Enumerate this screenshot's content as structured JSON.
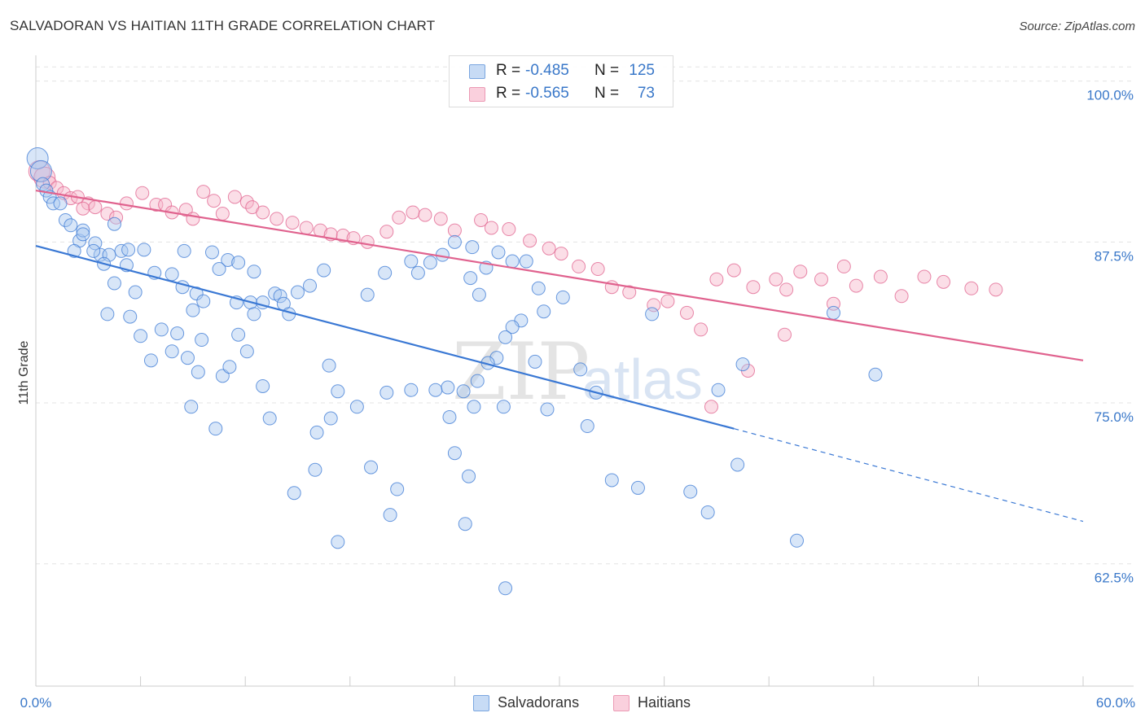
{
  "title": "SALVADORAN VS HAITIAN 11TH GRADE CORRELATION CHART",
  "source": "Source: ZipAtlas.com",
  "watermark": {
    "zip": "ZIP",
    "atlas": "atlas"
  },
  "legend_top": [
    {
      "r_label": "R =",
      "r_value": "-0.485",
      "n_label": "N =",
      "n_value": "125",
      "color": "#a9c8ef"
    },
    {
      "r_label": "R =",
      "r_value": "-0.565",
      "n_label": "N =",
      "n_value": "73",
      "color": "#f6b6ca"
    }
  ],
  "legend_bottom": [
    {
      "label": "Salvadorans",
      "color": "#a9c8ef"
    },
    {
      "label": "Haitians",
      "color": "#f6b6ca"
    }
  ],
  "chart_data": {
    "type": "scatter",
    "title": "SALVADORAN VS HAITIAN 11TH GRADE CORRELATION CHART",
    "xlabel": "",
    "ylabel": "11th Grade",
    "xlim": [
      0,
      60
    ],
    "ylim": [
      53,
      102
    ],
    "x_tick_labels": [
      "0.0%",
      "60.0%"
    ],
    "y_ticks": [
      62.5,
      75.0,
      87.5,
      100.0
    ],
    "y_tick_labels": [
      "62.5%",
      "75.0%",
      "87.5%",
      "100.0%"
    ],
    "grid": true,
    "legend": "bottom-center",
    "series": [
      {
        "name": "Salvadorans",
        "color": "#3a78d4",
        "fill": "#a9c8ef",
        "trend": {
          "x0": 0,
          "y0": 87.2,
          "x1": 40,
          "y1": 73.0,
          "dash_x1": 60,
          "dash_y1": 65.8
        },
        "points": [
          [
            0.1,
            94
          ],
          [
            0.3,
            93
          ],
          [
            0.4,
            92
          ],
          [
            0.6,
            91.5
          ],
          [
            0.8,
            91
          ],
          [
            1.0,
            90.5
          ],
          [
            1.4,
            90.5
          ],
          [
            1.7,
            89.2
          ],
          [
            2.0,
            88.8
          ],
          [
            2.5,
            87.6
          ],
          [
            2.7,
            88.4
          ],
          [
            2.2,
            86.8
          ],
          [
            3.4,
            87.4
          ],
          [
            3.7,
            86.5
          ],
          [
            3.3,
            86.8
          ],
          [
            4.2,
            86.5
          ],
          [
            4.9,
            86.8
          ],
          [
            5.3,
            86.9
          ],
          [
            6.2,
            86.9
          ],
          [
            5.2,
            85.7
          ],
          [
            6.8,
            85.1
          ],
          [
            8.5,
            86.8
          ],
          [
            10.1,
            86.7
          ],
          [
            11.0,
            86.1
          ],
          [
            10.5,
            85.4
          ],
          [
            11.6,
            85.9
          ],
          [
            12.5,
            85.2
          ],
          [
            2.7,
            88.1
          ],
          [
            4.5,
            88.9
          ],
          [
            3.9,
            85.8
          ],
          [
            4.5,
            84.3
          ],
          [
            5.7,
            83.6
          ],
          [
            7.8,
            85
          ],
          [
            8.4,
            84
          ],
          [
            9.2,
            83.5
          ],
          [
            9.6,
            82.9
          ],
          [
            11.5,
            82.8
          ],
          [
            13.7,
            83.5
          ],
          [
            12.3,
            82.8
          ],
          [
            14.0,
            83.3
          ],
          [
            15.0,
            83.6
          ],
          [
            14.2,
            82.7
          ],
          [
            16.5,
            85.3
          ],
          [
            19.0,
            83.4
          ],
          [
            20.0,
            85.1
          ],
          [
            21.5,
            86
          ],
          [
            21.9,
            85.1
          ],
          [
            23.3,
            86.5
          ],
          [
            24.0,
            87.5
          ],
          [
            25.0,
            87.1
          ],
          [
            22.6,
            85.9
          ],
          [
            24.9,
            84.7
          ],
          [
            25.4,
            83.4
          ],
          [
            25.8,
            85.5
          ],
          [
            26.5,
            86.7
          ],
          [
            27.3,
            86.0
          ],
          [
            28.1,
            86.0
          ],
          [
            28.8,
            83.9
          ],
          [
            30.2,
            83.2
          ],
          [
            29.1,
            82.1
          ],
          [
            27.8,
            81.4
          ],
          [
            27.3,
            80.9
          ],
          [
            26.9,
            80.1
          ],
          [
            26.4,
            78.5
          ],
          [
            25.9,
            78.1
          ],
          [
            25.3,
            76.7
          ],
          [
            23.6,
            76.2
          ],
          [
            24.5,
            75.9
          ],
          [
            25.1,
            74.7
          ],
          [
            23.7,
            73.9
          ],
          [
            22.9,
            76.0
          ],
          [
            21.5,
            76.0
          ],
          [
            20.1,
            75.8
          ],
          [
            18.4,
            74.7
          ],
          [
            17.3,
            75.9
          ],
          [
            16.8,
            77.9
          ],
          [
            14.5,
            81.9
          ],
          [
            13.0,
            82.8
          ],
          [
            12.5,
            81.9
          ],
          [
            15.7,
            84.1
          ],
          [
            11.6,
            80.3
          ],
          [
            12.1,
            79.0
          ],
          [
            10.7,
            77.1
          ],
          [
            9.5,
            79.9
          ],
          [
            9.0,
            82.2
          ],
          [
            8.1,
            80.4
          ],
          [
            7.8,
            79.0
          ],
          [
            6.6,
            78.3
          ],
          [
            5.4,
            81.7
          ],
          [
            4.1,
            81.9
          ],
          [
            6.0,
            80.2
          ],
          [
            7.2,
            80.7
          ],
          [
            8.7,
            78.5
          ],
          [
            9.3,
            77.4
          ],
          [
            8.9,
            74.7
          ],
          [
            10.3,
            73.0
          ],
          [
            11.1,
            77.8
          ],
          [
            13.4,
            73.8
          ],
          [
            13.0,
            76.3
          ],
          [
            16.0,
            69.8
          ],
          [
            14.8,
            68.0
          ],
          [
            16.9,
            73.8
          ],
          [
            16.1,
            72.7
          ],
          [
            17.3,
            64.2
          ],
          [
            19.2,
            70.0
          ],
          [
            20.3,
            66.3
          ],
          [
            20.7,
            68.3
          ],
          [
            24.0,
            71.1
          ],
          [
            24.8,
            69.3
          ],
          [
            24.6,
            65.6
          ],
          [
            26.9,
            60.6
          ],
          [
            26.8,
            74.7
          ],
          [
            28.6,
            78.2
          ],
          [
            29.3,
            74.5
          ],
          [
            31.2,
            77.6
          ],
          [
            31.6,
            73.2
          ],
          [
            32.1,
            75.8
          ],
          [
            33.0,
            69.0
          ],
          [
            34.5,
            68.4
          ],
          [
            35.3,
            81.9
          ],
          [
            37.5,
            68.1
          ],
          [
            38.5,
            66.5
          ],
          [
            39.1,
            76.0
          ],
          [
            40.2,
            70.2
          ],
          [
            40.5,
            78.0
          ],
          [
            43.6,
            64.3
          ],
          [
            45.7,
            82.0
          ],
          [
            48.1,
            77.2
          ]
        ]
      },
      {
        "name": "Haitians",
        "color": "#e0628e",
        "fill": "#f6b6ca",
        "trend": {
          "x0": 0,
          "y0": 91.5,
          "x1": 60,
          "y1": 78.3
        },
        "points": [
          [
            0.2,
            93.0
          ],
          [
            0.5,
            92.5
          ],
          [
            0.8,
            92.1
          ],
          [
            1.2,
            91.7
          ],
          [
            1.6,
            91.3
          ],
          [
            2.0,
            90.9
          ],
          [
            2.4,
            91.0
          ],
          [
            3.0,
            90.5
          ],
          [
            2.7,
            90.1
          ],
          [
            3.4,
            90.2
          ],
          [
            4.1,
            89.7
          ],
          [
            4.6,
            89.4
          ],
          [
            5.2,
            90.5
          ],
          [
            6.1,
            91.3
          ],
          [
            6.9,
            90.4
          ],
          [
            7.4,
            90.4
          ],
          [
            7.8,
            89.8
          ],
          [
            8.6,
            90.0
          ],
          [
            9.0,
            89.3
          ],
          [
            9.6,
            91.4
          ],
          [
            10.2,
            90.7
          ],
          [
            10.7,
            89.7
          ],
          [
            11.4,
            91.0
          ],
          [
            12.1,
            90.6
          ],
          [
            12.4,
            90.2
          ],
          [
            13.0,
            89.8
          ],
          [
            13.8,
            89.3
          ],
          [
            14.7,
            89.0
          ],
          [
            15.5,
            88.6
          ],
          [
            16.3,
            88.4
          ],
          [
            16.9,
            88.1
          ],
          [
            17.6,
            88.0
          ],
          [
            18.2,
            87.8
          ],
          [
            19.0,
            87.5
          ],
          [
            20.1,
            88.3
          ],
          [
            20.8,
            89.4
          ],
          [
            21.6,
            89.8
          ],
          [
            22.3,
            89.6
          ],
          [
            23.2,
            89.3
          ],
          [
            24.0,
            88.4
          ],
          [
            25.5,
            89.2
          ],
          [
            26.1,
            88.6
          ],
          [
            27.1,
            88.5
          ],
          [
            28.3,
            87.6
          ],
          [
            29.4,
            87.0
          ],
          [
            30.1,
            86.6
          ],
          [
            31.1,
            85.6
          ],
          [
            32.2,
            85.4
          ],
          [
            33.0,
            84.0
          ],
          [
            34.0,
            83.6
          ],
          [
            35.4,
            82.6
          ],
          [
            36.2,
            82.9
          ],
          [
            37.3,
            82.0
          ],
          [
            38.1,
            80.7
          ],
          [
            39.0,
            84.6
          ],
          [
            40.0,
            85.3
          ],
          [
            41.1,
            84.0
          ],
          [
            42.4,
            84.6
          ],
          [
            43.0,
            83.8
          ],
          [
            43.8,
            85.2
          ],
          [
            45.0,
            84.6
          ],
          [
            45.7,
            82.7
          ],
          [
            46.3,
            85.6
          ],
          [
            47.0,
            84.1
          ],
          [
            48.4,
            84.8
          ],
          [
            49.6,
            83.3
          ],
          [
            50.9,
            84.8
          ],
          [
            52.0,
            84.4
          ],
          [
            53.6,
            83.9
          ],
          [
            55.0,
            83.8
          ],
          [
            38.7,
            74.7
          ],
          [
            40.8,
            77.5
          ],
          [
            42.9,
            80.3
          ]
        ]
      }
    ]
  }
}
